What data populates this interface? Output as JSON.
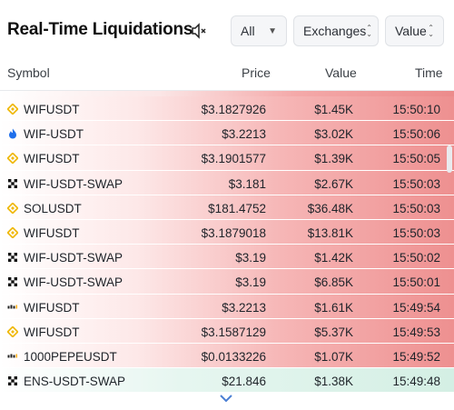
{
  "header": {
    "title": "Real-Time Liquidations",
    "filter_all": "All",
    "exchanges": "Exchanges",
    "sort_value": "Value"
  },
  "columns": {
    "symbol": "Symbol",
    "price": "Price",
    "value": "Value",
    "time": "Time"
  },
  "rows": [
    {
      "icon": "binance-icon",
      "symbol": "WIFUSDT",
      "price": "$3.1827926",
      "value": "$1.45K",
      "time": "15:50:10",
      "side": "red"
    },
    {
      "icon": "flame-icon",
      "symbol": "WIF-USDT",
      "price": "$3.2213",
      "value": "$3.02K",
      "time": "15:50:06",
      "side": "red"
    },
    {
      "icon": "binance-icon",
      "symbol": "WIFUSDT",
      "price": "$3.1901577",
      "value": "$1.39K",
      "time": "15:50:05",
      "side": "red"
    },
    {
      "icon": "okx-icon",
      "symbol": "WIF-USDT-SWAP",
      "price": "$3.181",
      "value": "$2.67K",
      "time": "15:50:03",
      "side": "red"
    },
    {
      "icon": "binance-icon",
      "symbol": "SOLUSDT",
      "price": "$181.4752",
      "value": "$36.48K",
      "time": "15:50:03",
      "side": "red"
    },
    {
      "icon": "binance-icon",
      "symbol": "WIFUSDT",
      "price": "$3.1879018",
      "value": "$13.81K",
      "time": "15:50:03",
      "side": "red"
    },
    {
      "icon": "okx-icon",
      "symbol": "WIF-USDT-SWAP",
      "price": "$3.19",
      "value": "$1.42K",
      "time": "15:50:02",
      "side": "red"
    },
    {
      "icon": "okx-icon",
      "symbol": "WIF-USDT-SWAP",
      "price": "$3.19",
      "value": "$6.85K",
      "time": "15:50:01",
      "side": "red"
    },
    {
      "icon": "bybit-icon",
      "symbol": "WIFUSDT",
      "price": "$3.2213",
      "value": "$1.61K",
      "time": "15:49:54",
      "side": "red"
    },
    {
      "icon": "binance-icon",
      "symbol": "WIFUSDT",
      "price": "$3.1587129",
      "value": "$5.37K",
      "time": "15:49:53",
      "side": "red"
    },
    {
      "icon": "bybit-icon",
      "symbol": "1000PEPEUSDT",
      "price": "$0.0133226",
      "value": "$1.07K",
      "time": "15:49:52",
      "side": "red"
    },
    {
      "icon": "okx-icon",
      "symbol": "ENS-USDT-SWAP",
      "price": "$21.846",
      "value": "$1.38K",
      "time": "15:49:48",
      "side": "green"
    }
  ],
  "colors": {
    "long_liq": "#ee9090",
    "short_liq": "#d4efe4",
    "binance": "#f0b90b",
    "flame": "#1f6feb"
  }
}
